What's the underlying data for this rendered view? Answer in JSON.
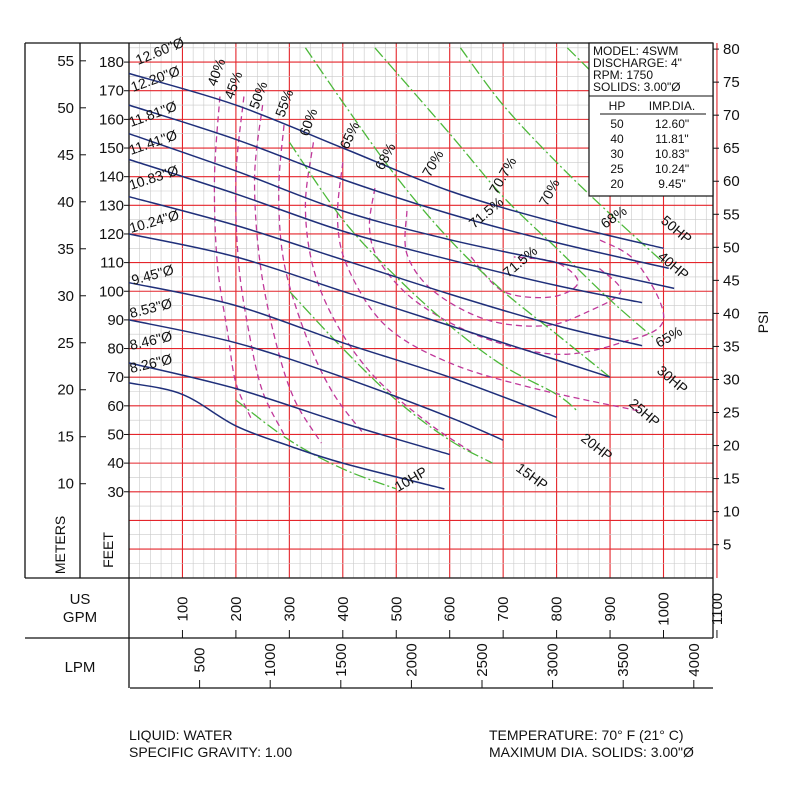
{
  "chart_data": {
    "type": "line",
    "x_axis": {
      "label_line1": "US",
      "label_line2": "GPM",
      "range": [
        0,
        1100
      ],
      "ticks": [
        100,
        200,
        300,
        400,
        500,
        600,
        700,
        800,
        900,
        1000,
        1100
      ]
    },
    "x2_axis": {
      "label": "LPM",
      "ticks": [
        500,
        1000,
        1500,
        2000,
        2500,
        3000,
        3500,
        4000
      ]
    },
    "y_axis_feet": {
      "label": "FEET",
      "range": [
        0,
        185
      ],
      "ticks": [
        30,
        40,
        50,
        60,
        70,
        80,
        90,
        100,
        110,
        120,
        130,
        140,
        150,
        160,
        170,
        180
      ]
    },
    "y_axis_meters": {
      "label": "METERS",
      "ticks": [
        10,
        15,
        20,
        25,
        30,
        35,
        40,
        45,
        50,
        55
      ]
    },
    "y_axis_psi": {
      "label": "PSI",
      "ticks": [
        5,
        10,
        15,
        20,
        25,
        30,
        35,
        40,
        45,
        50,
        55,
        60,
        65,
        70,
        75,
        80
      ]
    },
    "grid": true,
    "info_box": {
      "lines": [
        "MODEL: 4SWM",
        "DISCHARGE: 4\"",
        "RPM: 1750",
        "SOLIDS: 3.00\"Ø"
      ],
      "table_headers": [
        "HP",
        "IMP.DIA."
      ],
      "table_rows": [
        [
          "50",
          "12.60\""
        ],
        [
          "40",
          "11.81\""
        ],
        [
          "30",
          "10.83\""
        ],
        [
          "25",
          "10.24\""
        ],
        [
          "20",
          "9.45\""
        ]
      ]
    },
    "impeller_curves": [
      {
        "name": "12.60\"Ø",
        "points": [
          [
            0,
            176
          ],
          [
            200,
            165
          ],
          [
            400,
            150
          ],
          [
            600,
            135
          ],
          [
            800,
            124
          ],
          [
            1000,
            115
          ]
        ]
      },
      {
        "name": "12.20\"Ø",
        "points": [
          [
            0,
            165
          ],
          [
            200,
            153
          ],
          [
            400,
            139
          ],
          [
            600,
            127
          ],
          [
            800,
            117
          ],
          [
            1010,
            108
          ]
        ]
      },
      {
        "name": "11.81\"Ø",
        "points": [
          [
            0,
            155
          ],
          [
            200,
            142
          ],
          [
            400,
            128
          ],
          [
            600,
            118
          ],
          [
            800,
            110
          ],
          [
            1020,
            101
          ]
        ]
      },
      {
        "name": "11.41\"Ø",
        "points": [
          [
            0,
            146
          ],
          [
            200,
            134
          ],
          [
            400,
            121
          ],
          [
            600,
            111
          ],
          [
            800,
            102
          ],
          [
            960,
            96
          ]
        ]
      },
      {
        "name": "10.83\"Ø",
        "points": [
          [
            0,
            133
          ],
          [
            200,
            123
          ],
          [
            400,
            111
          ],
          [
            600,
            99
          ],
          [
            800,
            88
          ],
          [
            960,
            81
          ]
        ]
      },
      {
        "name": "10.24\"Ø",
        "points": [
          [
            0,
            120
          ],
          [
            200,
            112
          ],
          [
            400,
            100
          ],
          [
            600,
            88
          ],
          [
            800,
            76
          ],
          [
            900,
            70
          ]
        ]
      },
      {
        "name": "9.45\"Ø",
        "points": [
          [
            0,
            103
          ],
          [
            200,
            95
          ],
          [
            400,
            82
          ],
          [
            600,
            70
          ],
          [
            800,
            56
          ]
        ]
      },
      {
        "name": "8.53\"Ø",
        "points": [
          [
            0,
            90
          ],
          [
            200,
            82
          ],
          [
            400,
            70
          ],
          [
            600,
            56
          ],
          [
            700,
            48
          ]
        ]
      },
      {
        "name": "8.46\"Ø",
        "points": [
          [
            0,
            75
          ],
          [
            200,
            66
          ],
          [
            400,
            54
          ],
          [
            600,
            43
          ]
        ]
      },
      {
        "name": "8.26\"Ø",
        "points": [
          [
            0,
            68
          ],
          [
            100,
            64
          ],
          [
            200,
            53
          ],
          [
            300,
            46
          ],
          [
            400,
            40
          ],
          [
            590,
            31
          ]
        ]
      }
    ],
    "hp_curves": [
      {
        "name": "10HP",
        "points": [
          [
            200,
            62
          ],
          [
            300,
            48
          ],
          [
            400,
            38
          ],
          [
            500,
            31
          ]
        ]
      },
      {
        "name": "15HP",
        "points": [
          [
            300,
            100
          ],
          [
            400,
            80
          ],
          [
            500,
            62
          ],
          [
            600,
            48
          ],
          [
            680,
            40
          ]
        ]
      },
      {
        "name": "20HP",
        "points": [
          [
            300,
            152
          ],
          [
            400,
            125
          ],
          [
            500,
            105
          ],
          [
            600,
            88
          ],
          [
            700,
            74
          ],
          [
            800,
            64
          ],
          [
            840,
            58
          ]
        ]
      },
      {
        "name": "25HP",
        "points": [
          [
            330,
            185
          ],
          [
            400,
            166
          ],
          [
            500,
            140
          ],
          [
            600,
            118
          ],
          [
            700,
            100
          ],
          [
            800,
            85
          ],
          [
            900,
            70
          ]
        ]
      },
      {
        "name": "30HP",
        "points": [
          [
            460,
            185
          ],
          [
            600,
            155
          ],
          [
            700,
            133
          ],
          [
            800,
            115
          ],
          [
            900,
            97
          ],
          [
            980,
            84
          ]
        ]
      },
      {
        "name": "40HP",
        "points": [
          [
            620,
            185
          ],
          [
            700,
            165
          ],
          [
            800,
            145
          ],
          [
            900,
            127
          ],
          [
            1000,
            110
          ]
        ]
      },
      {
        "name": "50HP",
        "points": [
          [
            820,
            185
          ],
          [
            900,
            170
          ],
          [
            1000,
            150
          ],
          [
            1040,
            143
          ]
        ]
      }
    ],
    "efficiency_curves": [
      {
        "name": "40%",
        "points": [
          [
            170,
            168
          ],
          [
            160,
            140
          ],
          [
            165,
            110
          ],
          [
            185,
            85
          ],
          [
            200,
            68
          ],
          [
            230,
            55
          ]
        ]
      },
      {
        "name": "45%",
        "points": [
          [
            215,
            168
          ],
          [
            200,
            140
          ],
          [
            205,
            110
          ],
          [
            225,
            85
          ],
          [
            250,
            65
          ],
          [
            290,
            50
          ]
        ]
      },
      {
        "name": "50%",
        "points": [
          [
            250,
            165
          ],
          [
            235,
            140
          ],
          [
            245,
            110
          ],
          [
            275,
            82
          ],
          [
            310,
            62
          ],
          [
            360,
            47
          ]
        ]
      },
      {
        "name": "55%",
        "points": [
          [
            290,
            158
          ],
          [
            280,
            135
          ],
          [
            290,
            110
          ],
          [
            330,
            85
          ],
          [
            380,
            65
          ],
          [
            440,
            50
          ]
        ]
      },
      {
        "name": "60%",
        "points": [
          [
            345,
            152
          ],
          [
            330,
            130
          ],
          [
            345,
            108
          ],
          [
            390,
            88
          ],
          [
            460,
            70
          ],
          [
            560,
            54
          ],
          [
            640,
            44
          ]
        ]
      },
      {
        "name": "65%",
        "points": [
          [
            400,
            145
          ],
          [
            390,
            125
          ],
          [
            410,
            108
          ],
          [
            480,
            88
          ],
          [
            600,
            75
          ],
          [
            760,
            66
          ],
          [
            960,
            58
          ]
        ]
      },
      {
        "name": "68%",
        "points": [
          [
            460,
            136
          ],
          [
            450,
            122
          ],
          [
            470,
            110
          ],
          [
            540,
            96
          ],
          [
            660,
            84
          ],
          [
            800,
            78
          ],
          [
            920,
            82
          ],
          [
            1000,
            90
          ],
          [
            950,
            110
          ],
          [
            880,
            118
          ]
        ]
      },
      {
        "name": "70%",
        "points": [
          [
            520,
            128
          ],
          [
            520,
            113
          ],
          [
            570,
            100
          ],
          [
            670,
            90
          ],
          [
            780,
            88
          ],
          [
            860,
            93
          ],
          [
            920,
            100
          ],
          [
            880,
            108
          ]
        ]
      },
      {
        "name": "71.5%",
        "points": [
          [
            640,
            112
          ],
          [
            700,
            100
          ],
          [
            790,
            98
          ],
          [
            840,
            103
          ],
          [
            800,
            110
          ],
          [
            720,
            112
          ]
        ]
      }
    ],
    "labels": {
      "impeller": [
        "12.60\"Ø",
        "12.20\"Ø",
        "11.81\"Ø",
        "11.41\"Ø",
        "10.83\"Ø",
        "10.24\"Ø",
        "9.45\"Ø",
        "8.53\"Ø",
        "8.46\"Ø",
        "8.26\"Ø"
      ],
      "hp": [
        "50HP",
        "40HP",
        "30HP",
        "25HP",
        "20HP",
        "15HP",
        "10HP"
      ],
      "efficiency": [
        "40%",
        "45%",
        "50%",
        "55%",
        "60%",
        "65%",
        "68%",
        "70%",
        "70.7%",
        "71.5%",
        "71.5%",
        "70%",
        "68%",
        "65%"
      ]
    },
    "colors": {
      "grid": "#e4252b",
      "impeller": "#1f2f7a",
      "hp": "#4db83a",
      "efficiency": "#c0389a",
      "frame": "#111111"
    }
  },
  "footer": {
    "liquid": "LIQUID: WATER",
    "gravity": "SPECIFIC GRAVITY: 1.00",
    "temperature": "TEMPERATURE: 70° F (21° C)",
    "max_solids": "MAXIMUM DIA. SOLIDS: 3.00\"Ø"
  }
}
